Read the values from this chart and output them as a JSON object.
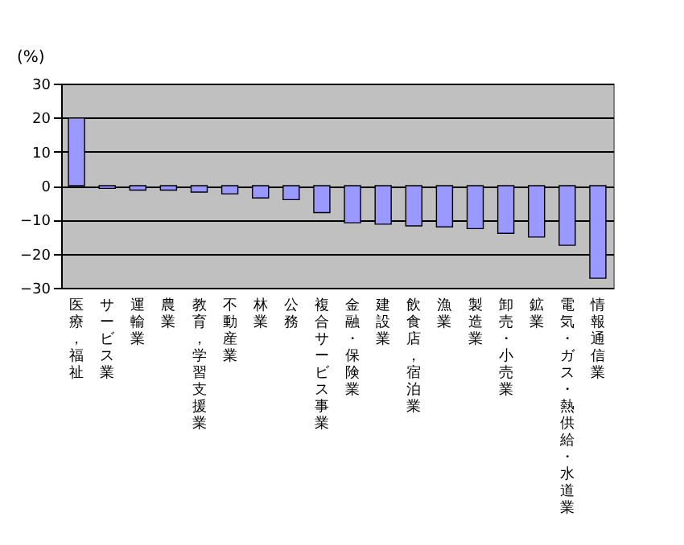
{
  "chart_data": {
    "type": "bar",
    "ylabel": "(%)",
    "categories": [
      "医療，福祉",
      "サービス業",
      "運輸業",
      "農業",
      "教育，学習支援業",
      "不動産業",
      "林業",
      "公務",
      "複合サービス事業",
      "金融・保険業",
      "建設業",
      "飲食店，宿泊業",
      "漁業",
      "製造業",
      "卸売・小売業",
      "鉱業",
      "電気・ガス・熱供給・水道業",
      "情報通信業"
    ],
    "values": [
      19.9,
      -0.8,
      -1.3,
      -1.3,
      -1.9,
      -2.4,
      -3.6,
      -4.1,
      -7.9,
      -10.9,
      -11.3,
      -11.8,
      -12.1,
      -12.6,
      -14.0,
      -15.1,
      -17.5,
      -27.2
    ],
    "color": "#9999ff",
    "ylim": [
      -30,
      30
    ],
    "yticks": [
      -30,
      -20,
      -10,
      0,
      10,
      20,
      30
    ],
    "grid": "y"
  }
}
